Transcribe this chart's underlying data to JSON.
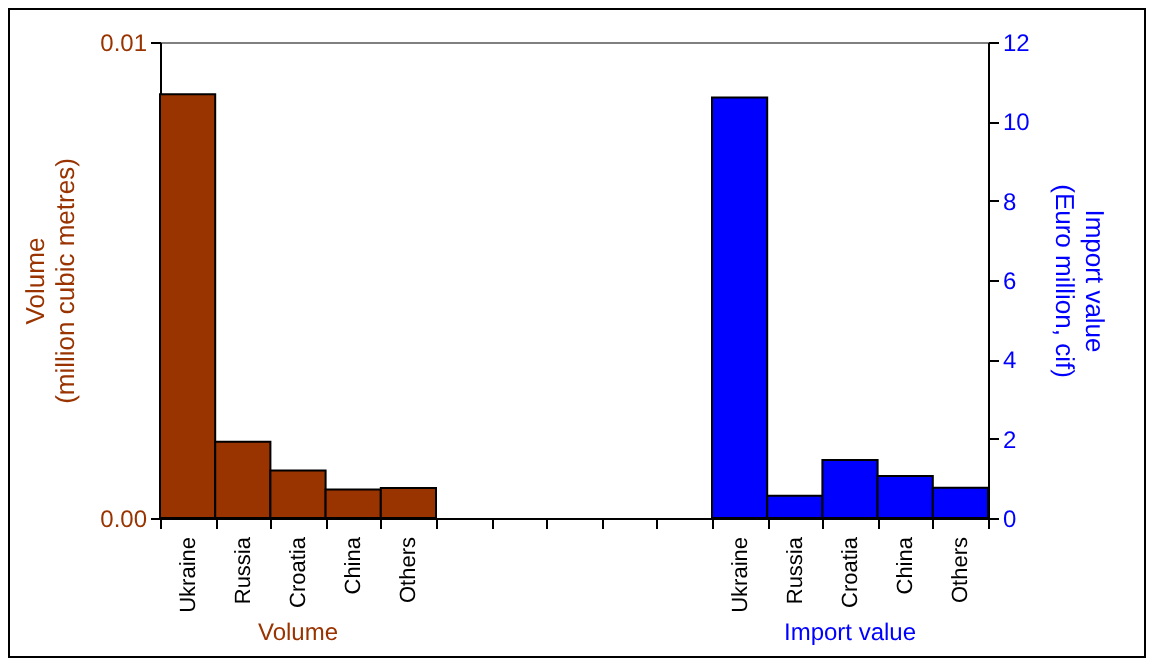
{
  "chart_data": {
    "type": "bar",
    "categories": [
      "Ukraine",
      "Russia",
      "Croatia",
      "China",
      "Others",
      null,
      null,
      null,
      null,
      null,
      "Ukraine",
      "Russia",
      "Croatia",
      "China",
      "Others"
    ],
    "series": [
      {
        "name": "Volume",
        "color": "#993300",
        "values": [
          0.0089,
          0.0016,
          0.001,
          0.0006,
          0.00063,
          null,
          null,
          null,
          null,
          null,
          null,
          null,
          null,
          null,
          null
        ]
      },
      {
        "name": "Import value",
        "color": "#0000ff",
        "axis": "y2",
        "values": [
          null,
          null,
          null,
          null,
          null,
          null,
          null,
          null,
          null,
          null,
          10.6,
          0.56,
          1.46,
          1.06,
          0.76
        ]
      }
    ],
    "ylabel": "Volume (million cubic metres)",
    "y2label": "Import value (Euro million, cif)",
    "ylim": [
      0,
      0.01
    ],
    "yticks": [
      {
        "value": 0,
        "label": "0.00"
      },
      {
        "value": 0.01,
        "label": "0.01"
      }
    ],
    "y2lim": [
      0,
      12
    ],
    "y2ticks": [
      0,
      2,
      4,
      6,
      8,
      10,
      12
    ],
    "grid": false
  }
}
